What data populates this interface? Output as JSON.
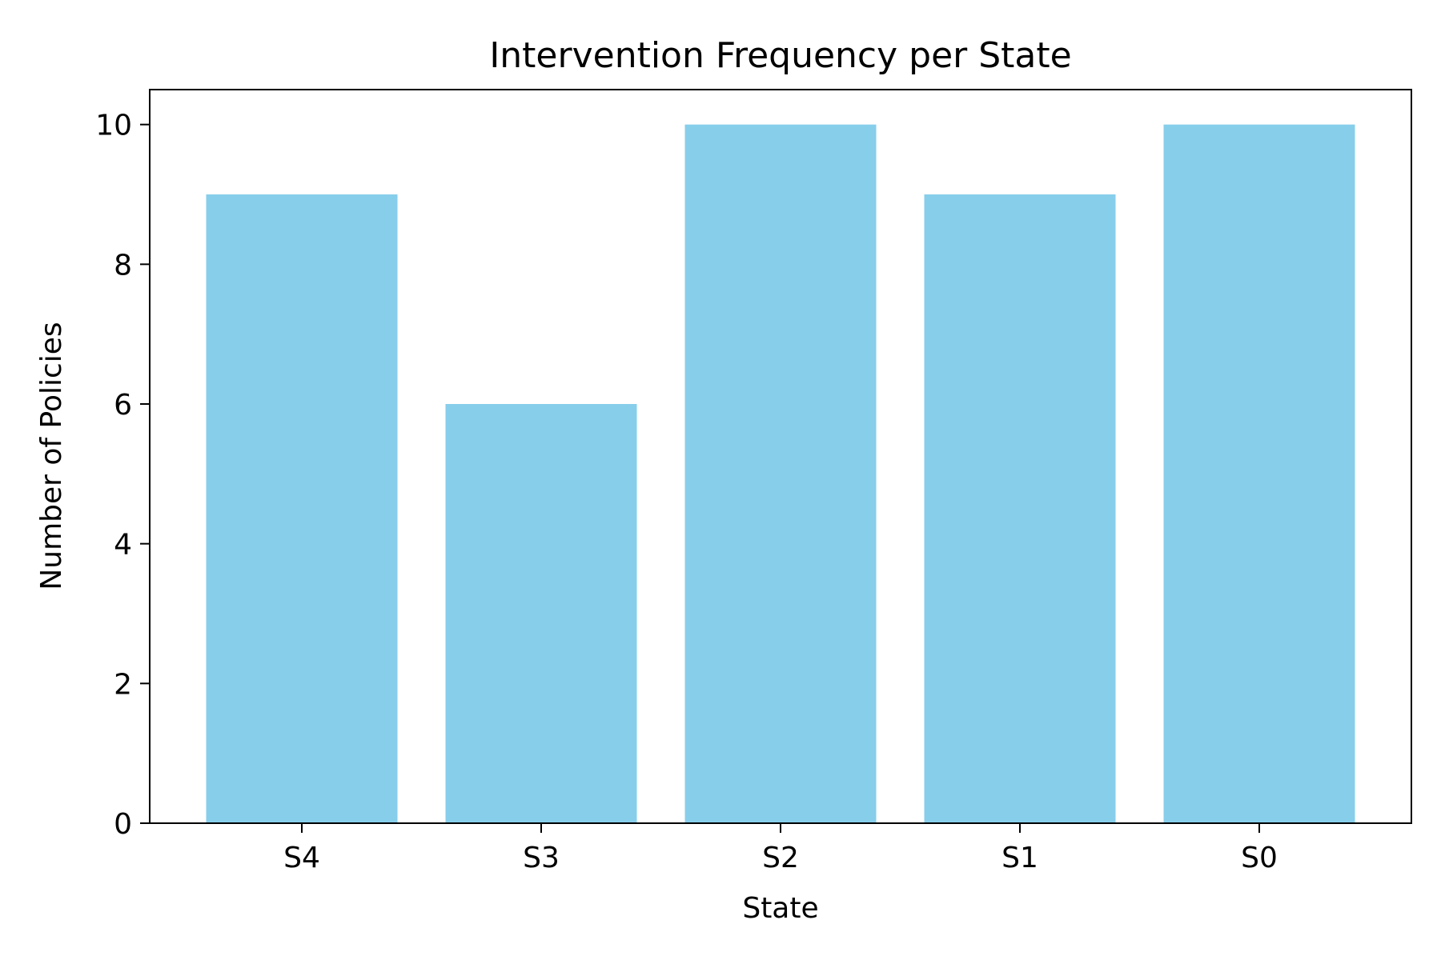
{
  "chart_data": {
    "type": "bar",
    "title": "Intervention Frequency per State",
    "xlabel": "State",
    "ylabel": "Number of Policies",
    "categories": [
      "S4",
      "S3",
      "S2",
      "S1",
      "S0"
    ],
    "values": [
      9,
      6,
      10,
      9,
      10
    ],
    "ylim": [
      0,
      10.5
    ],
    "yticks": [
      0,
      2,
      4,
      6,
      8,
      10
    ],
    "bar_color": "#87CEEB",
    "grid": false,
    "legend": "none"
  }
}
